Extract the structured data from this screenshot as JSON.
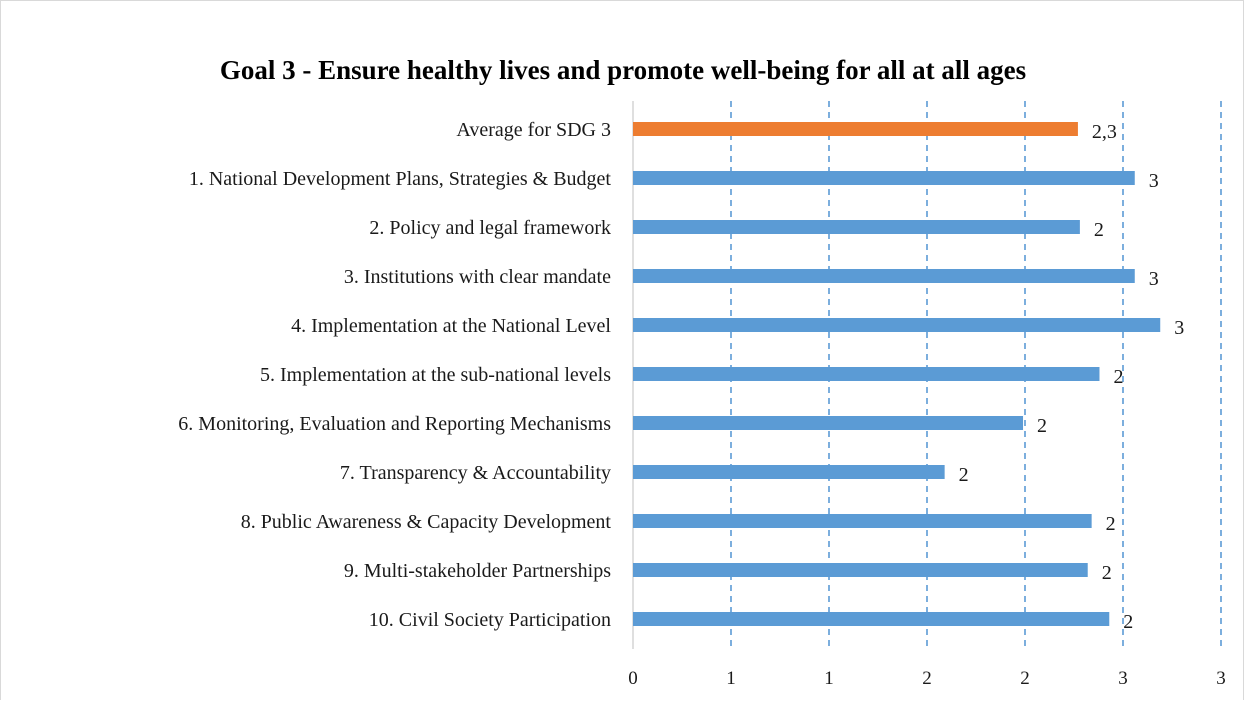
{
  "colors": {
    "bar": "#5b9bd5",
    "highlight_bar": "#ed7d31",
    "grid": "#5b9bd5",
    "axis": "#bfbfbf",
    "text": "#1a1a1a"
  },
  "chart_data": {
    "type": "bar",
    "orientation": "horizontal",
    "title": "Goal 3 - Ensure healthy lives and promote well-being for all at all ages",
    "xlabel": "",
    "ylabel": "",
    "xlim": [
      0,
      3
    ],
    "ticks": [
      {
        "value": 0,
        "label": "0"
      },
      {
        "value": 0.5,
        "label": "1"
      },
      {
        "value": 1.0,
        "label": "1"
      },
      {
        "value": 1.5,
        "label": "2"
      },
      {
        "value": 2.0,
        "label": "2"
      },
      {
        "value": 2.5,
        "label": "3"
      },
      {
        "value": 3.0,
        "label": "3"
      }
    ],
    "grid": true,
    "grid_style": "dashed-vertical",
    "legend": "none",
    "categories": [
      "Average for SDG 3",
      "1. National Development Plans, Strategies & Budget",
      "2. Policy and legal framework",
      "3. Institutions with clear mandate",
      "4. Implementation at the National Level",
      "5. Implementation at the sub-national levels",
      "6. Monitoring, Evaluation and Reporting  Mechanisms",
      "7. Transparency & Accountability",
      "8. Public Awareness & Capacity Development",
      "9. Multi-stakeholder Partnerships",
      "10. Civil Society Participation"
    ],
    "values": [
      2.27,
      2.56,
      2.28,
      2.56,
      2.69,
      2.38,
      1.99,
      1.59,
      2.34,
      2.32,
      2.43
    ],
    "data_labels": [
      "2,3",
      "3",
      "2",
      "3",
      "3",
      "2",
      "2",
      "2",
      "2",
      "2",
      "2"
    ],
    "highlight_index": 0
  }
}
